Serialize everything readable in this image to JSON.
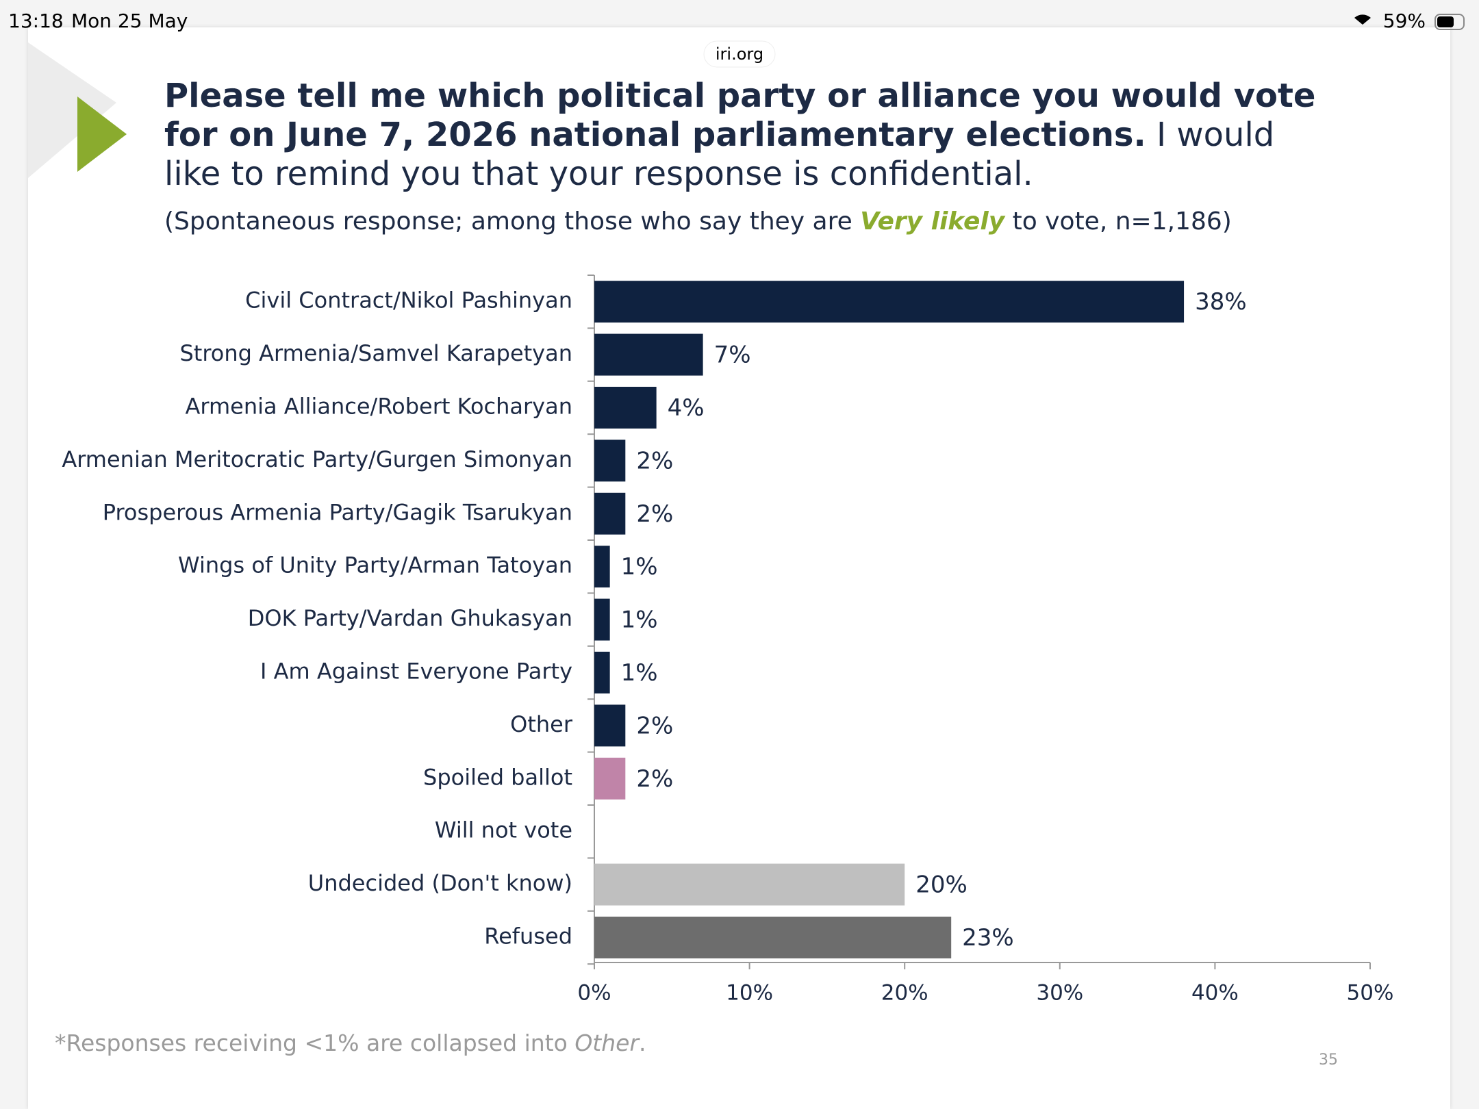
{
  "status_bar": {
    "time": "13:18",
    "date": "Mon 25 May",
    "battery": "59%"
  },
  "url": "iri.org",
  "chart_data": {
    "type": "barh",
    "title_bold": "Please tell me which political party or alliance you would vote for on June 7, 2026 national parliamentary elections.",
    "title_rest": "I would like to remind you that your response is confidential.",
    "subtitle_start": "(Spontaneous response; among those who say they are",
    "subtitle_emphasis": "Very likely",
    "subtitle_end": "to vote, n=1,186)",
    "categories": [
      "Civil Contract/Nikol Pashinyan",
      "Strong Armenia/Samvel Karapetyan",
      "Armenia Alliance/Robert Kocharyan",
      "Armenian Meritocratic Party/Gurgen Simonyan",
      "Prosperous Armenia Party/Gagik Tsarukyan",
      "Wings of Unity Party/Arman Tatoyan",
      "DOK Party/Vardan Ghukasyan",
      "I Am Against Everyone Party",
      "Other",
      "Spoiled ballot",
      "Will not vote",
      "Undecided (Don't know)",
      "Refused"
    ],
    "values": [
      38,
      7,
      4,
      2,
      2,
      1,
      1,
      1,
      2,
      2,
      null,
      20,
      23
    ],
    "value_labels": [
      "38%",
      "7%",
      "4%",
      "2%",
      "2%",
      "1%",
      "1%",
      "1%",
      "2%",
      "2%",
      null,
      "20%",
      "23%"
    ],
    "colors": [
      "#0f2240",
      "#0f2240",
      "#0f2240",
      "#0f2240",
      "#0f2240",
      "#0f2240",
      "#0f2240",
      "#0f2240",
      "#0f2240",
      "#c084a8",
      "#0f2240",
      "#bfbfbf",
      "#6d6d6d"
    ],
    "xlim": [
      0,
      50
    ],
    "xticks": [
      {
        "value": 0,
        "label": "0%"
      },
      {
        "value": 10,
        "label": "10%"
      },
      {
        "value": 20,
        "label": "20%"
      },
      {
        "value": 30,
        "label": "30%"
      },
      {
        "value": 40,
        "label": "40%"
      },
      {
        "value": 50,
        "label": "50%"
      }
    ],
    "footnote_start": "*Responses receiving <1% are collapsed into",
    "footnote_emphasis": "Other",
    "footnote_end": ".",
    "page_number": "35"
  }
}
